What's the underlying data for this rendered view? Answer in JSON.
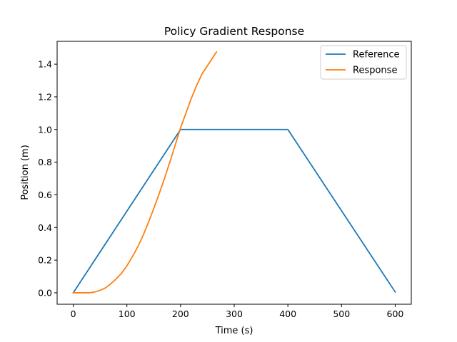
{
  "chart_data": {
    "type": "line",
    "title": "Policy Gradient Response",
    "xlabel": "Time (s)",
    "ylabel": "Position (m)",
    "xlim": [
      -30,
      630
    ],
    "ylim": [
      -0.07,
      1.54
    ],
    "xticks": [
      0,
      100,
      200,
      300,
      400,
      500,
      600
    ],
    "yticks": [
      0.0,
      0.2,
      0.4,
      0.6,
      0.8,
      1.0,
      1.2,
      1.4
    ],
    "xtick_labels": [
      "0",
      "100",
      "200",
      "300",
      "400",
      "500",
      "600"
    ],
    "ytick_labels": [
      "0.0",
      "0.2",
      "0.4",
      "0.6",
      "0.8",
      "1.0",
      "1.2",
      "1.4"
    ],
    "grid": false,
    "legend_position": "top-right",
    "series": [
      {
        "name": "Reference",
        "color": "#1f77b4",
        "x": [
          0,
          200,
          400,
          600
        ],
        "y": [
          0.0,
          1.0,
          1.0,
          0.005
        ]
      },
      {
        "name": "Response",
        "color": "#ff7f0e",
        "x": [
          0,
          10,
          20,
          30,
          40,
          50,
          60,
          70,
          80,
          90,
          100,
          110,
          120,
          130,
          140,
          150,
          160,
          170,
          180,
          190,
          200,
          210,
          220,
          230,
          240,
          250,
          260,
          267
        ],
        "y": [
          0.0,
          0.0,
          0.0,
          0.0,
          0.005,
          0.015,
          0.03,
          0.055,
          0.085,
          0.12,
          0.165,
          0.22,
          0.28,
          0.35,
          0.43,
          0.515,
          0.605,
          0.7,
          0.8,
          0.905,
          1.01,
          1.1,
          1.19,
          1.27,
          1.34,
          1.39,
          1.44,
          1.475
        ]
      }
    ]
  }
}
